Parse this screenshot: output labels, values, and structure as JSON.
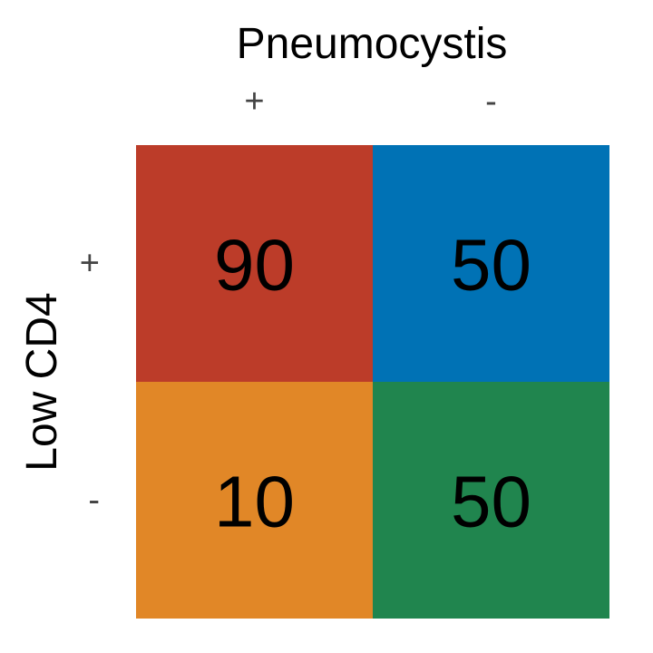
{
  "chart_data": {
    "type": "heatmap",
    "title": "",
    "xlabel": "Pneumocystis",
    "ylabel": "Low CD4",
    "x_categories": [
      "+",
      "-"
    ],
    "y_categories": [
      "+",
      "-"
    ],
    "cells": [
      {
        "row": 0,
        "col": 0,
        "value": 90,
        "label": "90",
        "color": "#BC3C29"
      },
      {
        "row": 0,
        "col": 1,
        "value": 50,
        "label": "50",
        "color": "#0072B5"
      },
      {
        "row": 1,
        "col": 0,
        "value": 10,
        "label": "10",
        "color": "#E18727"
      },
      {
        "row": 1,
        "col": 1,
        "value": 50,
        "label": "50",
        "color": "#20854E"
      }
    ],
    "colors": {
      "background": "#FFFFFF",
      "cell_text": "#000000",
      "axis_text": "#000000",
      "tick_text": "#444444"
    },
    "grid": false,
    "legend": "none"
  }
}
